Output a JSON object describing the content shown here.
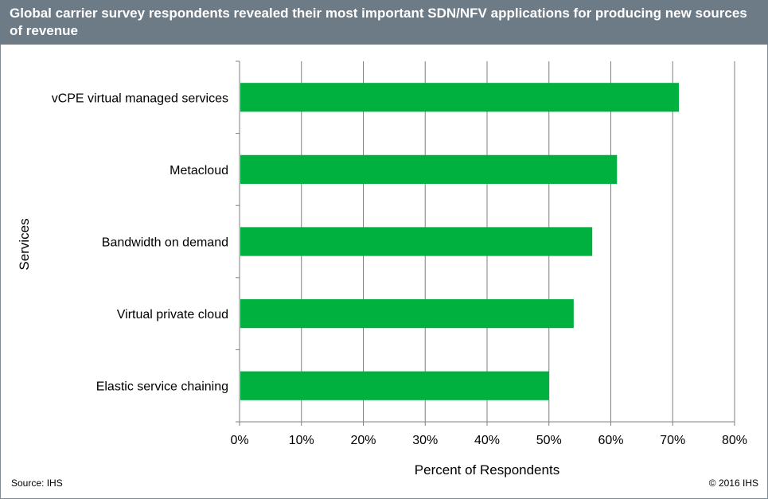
{
  "header": {
    "title": "Global carrier survey respondents revealed their most important SDN/NFV applications for producing new sources of revenue"
  },
  "footer": {
    "source": "Source: IHS",
    "copyright": "© 2016 IHS"
  },
  "colors": {
    "bar": "#00b140",
    "header_bg": "#6d7b86",
    "grid": "#7f7f7f"
  },
  "chart_data": {
    "type": "bar",
    "orientation": "horizontal",
    "title": "Global carrier survey respondents revealed their most important SDN/NFV applications for producing new sources of revenue",
    "xlabel": "Percent of Respondents",
    "ylabel": "Services",
    "xlim": [
      0,
      80
    ],
    "xticks": [
      "0%",
      "10%",
      "20%",
      "30%",
      "40%",
      "50%",
      "60%",
      "70%",
      "80%"
    ],
    "grid": true,
    "categories": [
      "vCPE virtual managed services",
      "Metacloud",
      "Bandwidth on demand",
      "Virtual private cloud",
      "Elastic service chaining"
    ],
    "values": [
      71,
      61,
      57,
      54,
      50
    ],
    "unit": "%"
  }
}
